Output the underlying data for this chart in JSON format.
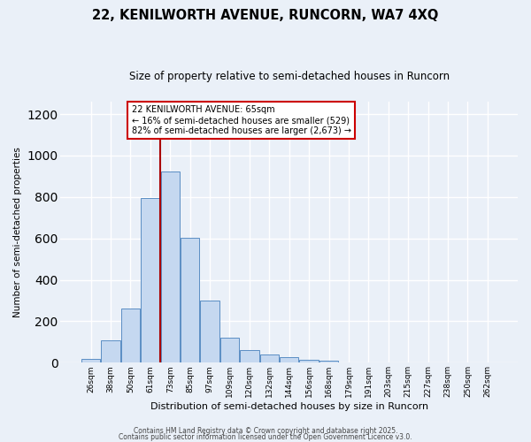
{
  "title_line1": "22, KENILWORTH AVENUE, RUNCORN, WA7 4XQ",
  "title_line2": "Size of property relative to semi-detached houses in Runcorn",
  "xlabel": "Distribution of semi-detached houses by size in Runcorn",
  "ylabel": "Number of semi-detached properties",
  "bar_labels": [
    "26sqm",
    "38sqm",
    "50sqm",
    "61sqm",
    "73sqm",
    "85sqm",
    "97sqm",
    "109sqm",
    "120sqm",
    "132sqm",
    "144sqm",
    "156sqm",
    "168sqm",
    "179sqm",
    "191sqm",
    "203sqm",
    "215sqm",
    "227sqm",
    "238sqm",
    "250sqm",
    "262sqm"
  ],
  "bar_values": [
    18,
    110,
    260,
    795,
    925,
    605,
    300,
    120,
    60,
    38,
    28,
    14,
    8,
    0,
    0,
    0,
    0,
    0,
    0,
    0,
    0
  ],
  "bar_color": "#c5d8f0",
  "bar_edge_color": "#5b8ec4",
  "vline_color": "#aa0000",
  "annotation_text": "22 KENILWORTH AVENUE: 65sqm\n← 16% of semi-detached houses are smaller (529)\n82% of semi-detached houses are larger (2,673) →",
  "annotation_box_color": "#ffffff",
  "annotation_box_edge": "#cc0000",
  "ylim": [
    0,
    1260
  ],
  "yticks": [
    0,
    200,
    400,
    600,
    800,
    1000,
    1200
  ],
  "background_color": "#eaf0f8",
  "grid_color": "#ffffff",
  "footer_line1": "Contains HM Land Registry data © Crown copyright and database right 2025.",
  "footer_line2": "Contains public sector information licensed under the Open Government Licence v3.0."
}
